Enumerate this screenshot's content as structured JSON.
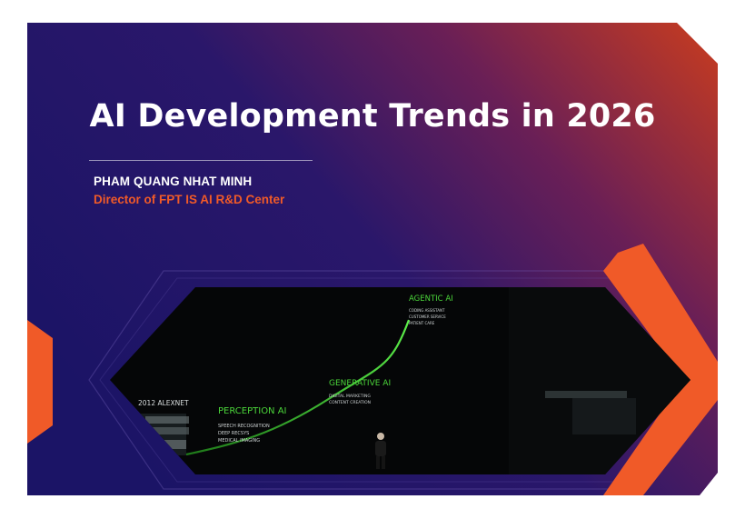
{
  "slide": {
    "title": "AI Development Trends in 2026",
    "presenter": {
      "name": "PHAM QUANG NHAT MINH",
      "role": "Director of FPT IS AI R&D Center"
    },
    "colors": {
      "background_start": "#1b1466",
      "background_end": "#c23a22",
      "accent_orange": "#f05a28",
      "timeline_green": "#4bd63a"
    },
    "photo": {
      "stages": [
        {
          "label": "2012 ALEXNET",
          "items": []
        },
        {
          "label": "PERCEPTION AI",
          "items": [
            "SPEECH RECOGNITION",
            "DEEP RECSYS",
            "MEDICAL IMAGING"
          ]
        },
        {
          "label": "GENERATIVE AI",
          "items": [
            "DIGITAL MARKETING",
            "CONTENT CREATION"
          ]
        },
        {
          "label": "AGENTIC AI",
          "items": [
            "CODING ASSISTANT",
            "CUSTOMER SERVICE",
            "PATIENT CARE"
          ]
        }
      ]
    }
  }
}
